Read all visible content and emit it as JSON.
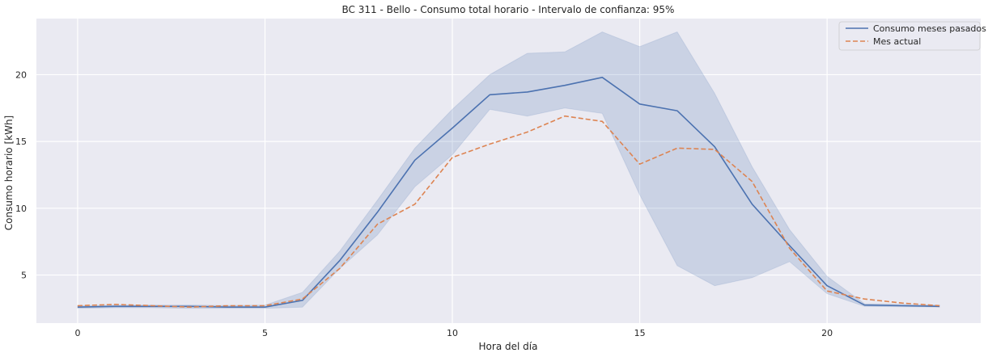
{
  "chart_data": {
    "type": "line",
    "title": "BC 311 - Bello - Consumo total horario - Intervalo de confianza: 95%",
    "xlabel": "Hora del día",
    "ylabel": "Consumo horario [kWh]",
    "xlim": [
      -1.1,
      24.1
    ],
    "ylim": [
      1.4,
      24.2
    ],
    "xticks": [
      0,
      5,
      10,
      15,
      20
    ],
    "yticks": [
      5,
      10,
      15,
      20
    ],
    "grid": true,
    "legend_position": "top-right",
    "x": [
      0,
      1,
      2,
      3,
      4,
      5,
      6,
      7,
      8,
      9,
      10,
      11,
      12,
      13,
      14,
      15,
      16,
      17,
      18,
      19,
      20,
      21,
      22,
      23
    ],
    "series": [
      {
        "name": "Consumo meses pasados",
        "color": "#4c72b0",
        "style": "solid",
        "values": [
          2.6,
          2.65,
          2.65,
          2.65,
          2.6,
          2.6,
          3.1,
          6.1,
          9.7,
          13.6,
          16.0,
          18.5,
          18.7,
          19.2,
          19.8,
          17.8,
          17.3,
          14.6,
          10.3,
          7.2,
          4.2,
          2.75,
          2.7,
          2.65
        ],
        "ci_lower": [
          2.5,
          2.55,
          2.55,
          2.5,
          2.5,
          2.5,
          2.6,
          5.5,
          8.0,
          11.6,
          14.0,
          17.4,
          16.9,
          17.5,
          17.1,
          11.0,
          5.7,
          4.2,
          4.8,
          6.0,
          3.6,
          2.65,
          2.62,
          2.6
        ],
        "ci_upper": [
          2.7,
          2.75,
          2.75,
          2.75,
          2.72,
          2.75,
          3.7,
          6.8,
          10.6,
          14.5,
          17.4,
          20.0,
          21.6,
          21.7,
          23.2,
          22.1,
          23.2,
          18.6,
          13.1,
          8.4,
          4.9,
          2.85,
          2.8,
          2.75
        ]
      },
      {
        "name": "Mes actual",
        "color": "#dd8452",
        "style": "dashed",
        "values": [
          2.7,
          2.8,
          2.7,
          2.6,
          2.7,
          2.7,
          3.2,
          5.5,
          8.8,
          10.3,
          13.8,
          14.8,
          15.7,
          16.9,
          16.5,
          13.3,
          14.5,
          14.4,
          12.0,
          7.0,
          3.8,
          3.2,
          2.9,
          2.7
        ]
      }
    ]
  }
}
